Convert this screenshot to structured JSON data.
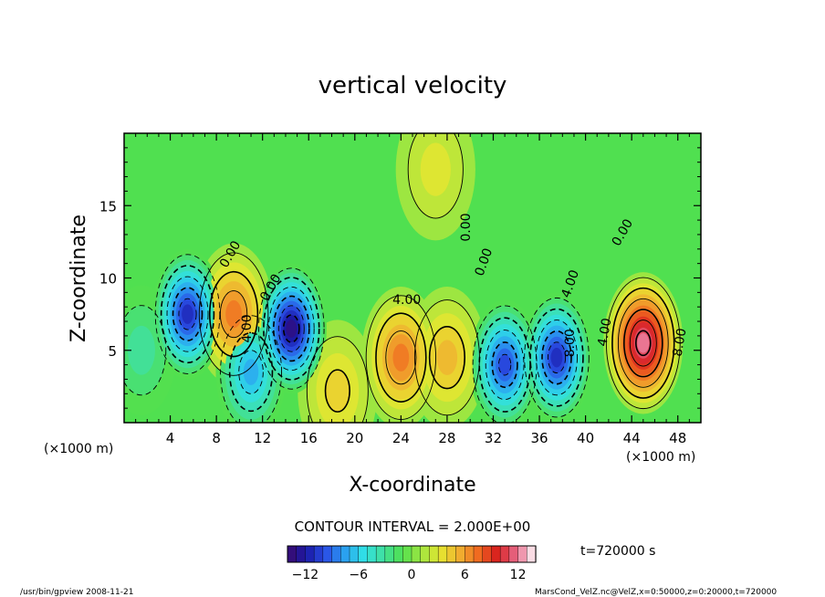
{
  "chart_data": {
    "type": "heatmap",
    "title": "vertical velocity",
    "xlabel": "X-coordinate",
    "ylabel": "Z-coordinate",
    "x_unit": "(×1000 m)",
    "y_unit": "(×1000 m)",
    "xlim": [
      0,
      50
    ],
    "ylim": [
      0,
      20
    ],
    "x_ticks": [
      "4",
      "8",
      "12",
      "16",
      "20",
      "24",
      "28",
      "32",
      "36",
      "40",
      "44",
      "48"
    ],
    "y_ticks": [
      "5",
      "10",
      "15"
    ],
    "contour_labels": [
      "0.00",
      "0.00",
      "0.00",
      "0.00",
      "0.00",
      "4.00",
      "4.00",
      "4.00",
      "8.00",
      "8.00",
      "4.00"
    ],
    "contour_interval_text": "CONTOUR INTERVAL = 2.000E+00",
    "colorbar": {
      "min": -14,
      "max": 14,
      "ticks": [
        "−12",
        "−6",
        "0",
        "6",
        "12"
      ],
      "colors": [
        "#3a0a6e",
        "#1a1aa8",
        "#2a50e6",
        "#2aa0f0",
        "#30e0e6",
        "#40e0a0",
        "#50e050",
        "#a0e640",
        "#e6e630",
        "#f0b030",
        "#f06a20",
        "#d81e1e",
        "#e86a8a",
        "#ffffff"
      ]
    },
    "time_text": "t=720000  s",
    "footer_left": "/usr/bin/gpview  2008-11-21",
    "footer_right": "MarsCond_VelZ.nc@VelZ,x=0:50000,z=0:20000,t=720000",
    "features": [
      {
        "x": 45,
        "z": 5.5,
        "w": 12.5
      },
      {
        "x": 24,
        "z": 4.5,
        "w": 7.5
      },
      {
        "x": 28,
        "z": 4.5,
        "w": 5.0
      },
      {
        "x": 9.5,
        "z": 7.5,
        "w": 7.0
      },
      {
        "x": 18.5,
        "z": 2.2,
        "w": 4.0
      },
      {
        "x": 27,
        "z": 17.5,
        "w": 3.0
      },
      {
        "x": 5.5,
        "z": 7.5,
        "w": -11.0
      },
      {
        "x": 14.5,
        "z": 6.5,
        "w": -13.0
      },
      {
        "x": 11.0,
        "z": 3.5,
        "w": -7.0
      },
      {
        "x": 33.0,
        "z": 4.0,
        "w": -10.0
      },
      {
        "x": 37.5,
        "z": 4.5,
        "w": -11.0
      },
      {
        "x": 1.5,
        "z": 5.0,
        "w": -3.0
      }
    ]
  }
}
